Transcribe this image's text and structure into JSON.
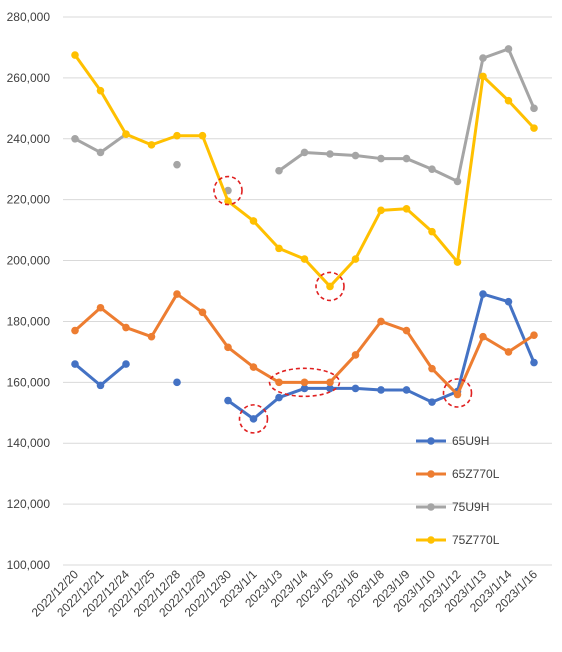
{
  "chart_data": {
    "type": "line",
    "categories": [
      "2022/12/20",
      "2022/12/21",
      "2022/12/24",
      "2022/12/25",
      "2022/12/28",
      "2022/12/29",
      "2022/12/30",
      "2023/1/1",
      "2023/1/3",
      "2023/1/4",
      "2023/1/5",
      "2023/1/6",
      "2023/1/8",
      "2023/1/9",
      "2023/1/10",
      "2023/1/12",
      "2023/1/13",
      "2023/1/14",
      "2023/1/16"
    ],
    "ylim": [
      100000,
      280000
    ],
    "yticks": [
      100000,
      120000,
      140000,
      160000,
      180000,
      200000,
      220000,
      240000,
      260000,
      280000
    ],
    "ytick_labels": [
      "100,000",
      "120,000",
      "140,000",
      "160,000",
      "180,000",
      "200,000",
      "220,000",
      "240,000",
      "260,000",
      "280,000"
    ],
    "grid": true,
    "legend_position": "right",
    "series": [
      {
        "name": "65U9H",
        "color": "#4472C4",
        "values": [
          166000,
          159000,
          166000,
          null,
          160000,
          null,
          154000,
          148000,
          155000,
          158000,
          158000,
          158000,
          157500,
          157500,
          153500,
          157000,
          189000,
          186500,
          166500
        ]
      },
      {
        "name": "65Z770L",
        "color": "#ED7D31",
        "values": [
          177000,
          184500,
          178000,
          175000,
          189000,
          183000,
          171500,
          165000,
          160000,
          160000,
          160000,
          169000,
          180000,
          177000,
          164500,
          156000,
          175000,
          170000,
          175500
        ]
      },
      {
        "name": "75U9H",
        "color": "#A5A5A5",
        "values": [
          240000,
          235500,
          241500,
          null,
          231500,
          null,
          223000,
          null,
          229500,
          235500,
          235000,
          234500,
          233500,
          233500,
          230000,
          226000,
          266500,
          269500,
          250000
        ]
      },
      {
        "name": "75Z770L",
        "color": "#FFC000",
        "values": [
          267500,
          255800,
          241500,
          238000,
          241000,
          241000,
          219500,
          213000,
          204000,
          200500,
          191500,
          200500,
          216500,
          217000,
          209500,
          199500,
          260500,
          252500,
          243500
        ]
      }
    ],
    "annotations": [
      {
        "type": "dashed-circle",
        "category": "2022/12/30",
        "value": 223000
      },
      {
        "type": "dashed-circle",
        "category": "2023/1/5",
        "value": 191500
      },
      {
        "type": "dashed-circle",
        "category": "2023/1/1",
        "value": 148000
      },
      {
        "type": "dashed-ellipse",
        "category": "2023/1/4",
        "value": 160000
      },
      {
        "type": "dashed-circle",
        "category": "2023/1/12",
        "value": 156500
      }
    ]
  }
}
